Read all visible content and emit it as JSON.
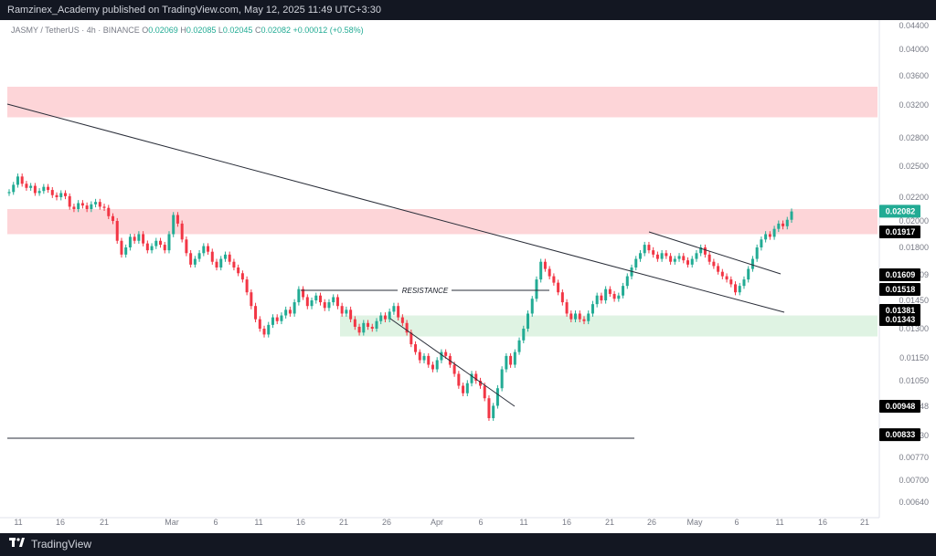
{
  "header": {
    "published": "Ramzinex_Academy published on TradingView.com, May 12, 2025 11:49 UTC+3:30"
  },
  "footer": {
    "brand": "TradingView"
  },
  "legend": {
    "symbol": "JASMY / TetherUS · 4h · BINANCE",
    "o_label": "O",
    "o_val": "0.02069",
    "h_label": "H",
    "h_val": "0.02085",
    "l_label": "L",
    "l_val": "0.02045",
    "c_label": "C",
    "c_val": "0.02082",
    "change": "+0.00012 (+0.58%)"
  },
  "colors": {
    "up": "#22ab94",
    "down": "#f23645",
    "zone_red": "#fdd5d8",
    "zone_green": "#dff3e3",
    "price_tag": "#22ab94"
  },
  "chart_data": {
    "type": "candlestick",
    "y_ticks": [
      "0.04400",
      "0.04000",
      "0.03600",
      "0.03200",
      "0.02800",
      "0.02500",
      "0.02200",
      "0.02000",
      "0.01800",
      "0.01609",
      "0.01450",
      "0.01300",
      "0.01150",
      "0.01050",
      "0.00948",
      "0.00830",
      "0.00770",
      "0.00700",
      "0.00640"
    ],
    "x_ticks": [
      "11",
      "16",
      "21",
      "Mar",
      "6",
      "11",
      "16",
      "21",
      "26",
      "Apr",
      "6",
      "11",
      "16",
      "21",
      "26",
      "May",
      "6",
      "11",
      "16",
      "21"
    ],
    "price_labels": [
      {
        "text": "0.02082",
        "value": 0.02082,
        "style": "current"
      },
      {
        "text": "0.01917",
        "value": 0.01917,
        "style": "black"
      },
      {
        "text": "0.01609",
        "value": 0.01609,
        "style": "black"
      },
      {
        "text": "0.01518",
        "value": 0.01518,
        "style": "black"
      },
      {
        "text": "0.01381",
        "value": 0.01381,
        "style": "black"
      },
      {
        "text": "0.01343",
        "value": 0.01343,
        "style": "black"
      },
      {
        "text": "0.00948",
        "value": 0.00948,
        "style": "black"
      },
      {
        "text": "0.00833",
        "value": 0.00833,
        "style": "black"
      }
    ],
    "zones": [
      {
        "name": "resistance-zone-upper",
        "from": 0.0305,
        "to": 0.0345,
        "color": "red"
      },
      {
        "name": "resistance-zone-middle",
        "from": 0.019,
        "to": 0.021,
        "color": "red"
      },
      {
        "name": "support-zone",
        "from": 0.0126,
        "to": 0.0137,
        "color": "green"
      }
    ],
    "annotations": [
      {
        "text": "RESISTANCE"
      }
    ],
    "closes": [
      0.0225,
      0.0232,
      0.024,
      0.0233,
      0.0229,
      0.0231,
      0.0224,
      0.0226,
      0.023,
      0.0227,
      0.0222,
      0.022,
      0.0224,
      0.0221,
      0.0212,
      0.021,
      0.0215,
      0.0213,
      0.021,
      0.0214,
      0.0216,
      0.0212,
      0.0211,
      0.0204,
      0.02,
      0.0185,
      0.0175,
      0.018,
      0.0188,
      0.0185,
      0.019,
      0.0183,
      0.0178,
      0.0181,
      0.0185,
      0.0182,
      0.0178,
      0.019,
      0.0205,
      0.0198,
      0.0186,
      0.0176,
      0.0168,
      0.0172,
      0.0176,
      0.0181,
      0.0177,
      0.017,
      0.0166,
      0.0172,
      0.0175,
      0.017,
      0.0166,
      0.0162,
      0.0158,
      0.015,
      0.0142,
      0.0135,
      0.013,
      0.0127,
      0.0132,
      0.0136,
      0.0134,
      0.0137,
      0.014,
      0.0138,
      0.0144,
      0.0152,
      0.0147,
      0.0142,
      0.0145,
      0.0148,
      0.0144,
      0.0141,
      0.0144,
      0.0147,
      0.0142,
      0.0138,
      0.014,
      0.0135,
      0.0131,
      0.0128,
      0.0133,
      0.0131,
      0.013,
      0.0134,
      0.0137,
      0.0135,
      0.0139,
      0.0142,
      0.0136,
      0.0133,
      0.0128,
      0.0122,
      0.0118,
      0.0114,
      0.0116,
      0.0112,
      0.011,
      0.0114,
      0.0118,
      0.0116,
      0.0112,
      0.0108,
      0.0103,
      0.01,
      0.0104,
      0.0108,
      0.0105,
      0.0103,
      0.0098,
      0.009,
      0.0095,
      0.0102,
      0.011,
      0.0116,
      0.0112,
      0.0118,
      0.0124,
      0.013,
      0.0138,
      0.0146,
      0.0158,
      0.017,
      0.0165,
      0.016,
      0.0156,
      0.015,
      0.0144,
      0.0138,
      0.0135,
      0.0138,
      0.0135,
      0.0134,
      0.0138,
      0.0143,
      0.0148,
      0.0145,
      0.0152,
      0.0149,
      0.0146,
      0.0148,
      0.0154,
      0.016,
      0.0166,
      0.0172,
      0.0176,
      0.0182,
      0.0178,
      0.0175,
      0.0172,
      0.0176,
      0.0174,
      0.017,
      0.0172,
      0.0174,
      0.0171,
      0.0168,
      0.0172,
      0.0176,
      0.018,
      0.0175,
      0.017,
      0.0167,
      0.0163,
      0.016,
      0.0158,
      0.0155,
      0.015,
      0.0154,
      0.0158,
      0.0165,
      0.0172,
      0.018,
      0.0186,
      0.019,
      0.0188,
      0.0194,
      0.0198,
      0.0196,
      0.0201,
      0.0208
    ]
  }
}
